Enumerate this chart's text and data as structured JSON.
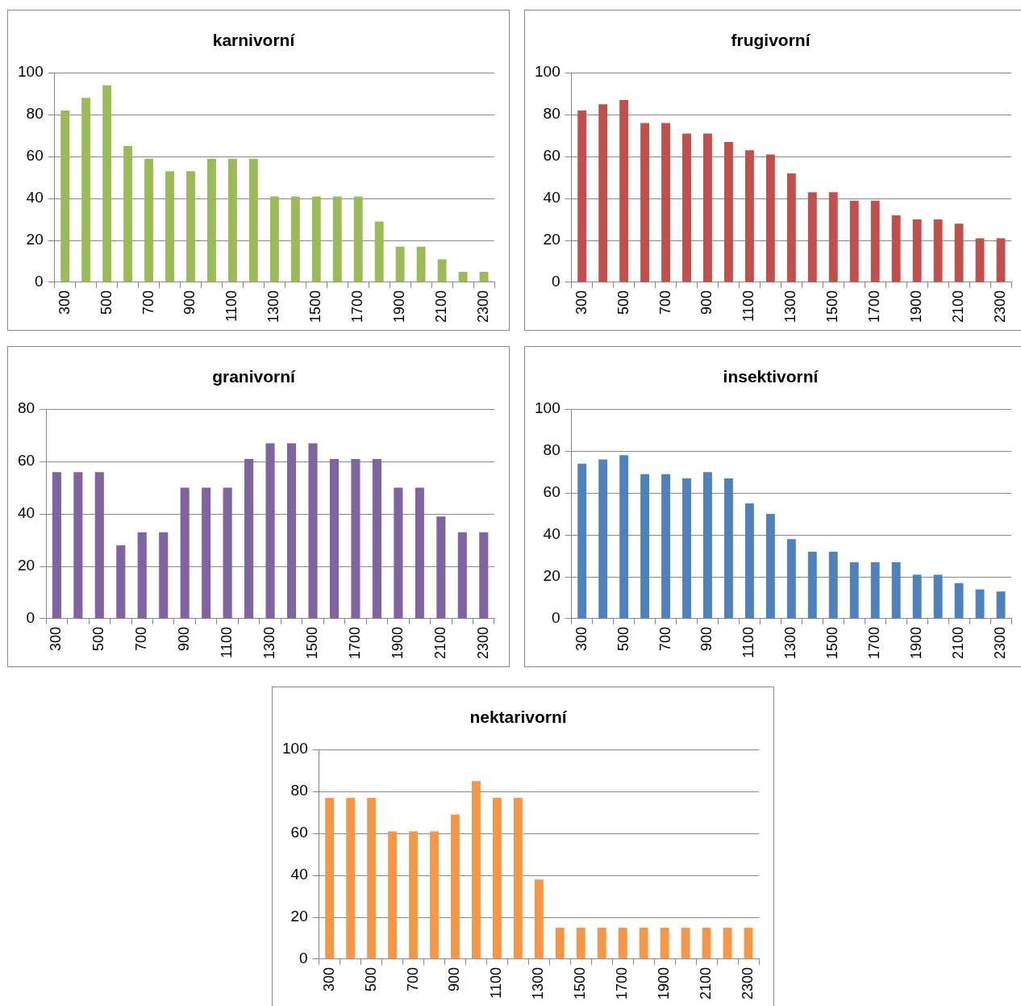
{
  "chart_data": [
    {
      "type": "bar",
      "title": "karnivorní",
      "categories": [
        "300",
        null,
        "500",
        null,
        "700",
        null,
        "900",
        null,
        "1100",
        null,
        "1300",
        null,
        "1500",
        null,
        "1700",
        null,
        "1900",
        null,
        "2100",
        null,
        "2300"
      ],
      "values": [
        82,
        88,
        94,
        65,
        59,
        53,
        53,
        59,
        59,
        59,
        41,
        41,
        41,
        41,
        41,
        29,
        17,
        17,
        11,
        5,
        5
      ],
      "color": "#9bbb59",
      "ylim": [
        0,
        100
      ],
      "yticks": [
        0,
        20,
        40,
        60,
        80,
        100
      ],
      "grid": "y"
    },
    {
      "type": "bar",
      "title": "frugivorní",
      "categories": [
        "300",
        null,
        "500",
        null,
        "700",
        null,
        "900",
        null,
        "1100",
        null,
        "1300",
        null,
        "1500",
        null,
        "1700",
        null,
        "1900",
        null,
        "2100",
        null,
        "2300"
      ],
      "values": [
        82,
        85,
        87,
        76,
        76,
        71,
        71,
        67,
        63,
        61,
        52,
        43,
        43,
        39,
        39,
        32,
        30,
        30,
        28,
        21,
        21
      ],
      "color": "#c0504d",
      "ylim": [
        0,
        100
      ],
      "yticks": [
        0,
        20,
        40,
        60,
        80,
        100
      ],
      "grid": "y"
    },
    {
      "type": "bar",
      "title": "granivorní",
      "categories": [
        "300",
        null,
        "500",
        null,
        "700",
        null,
        "900",
        null,
        "1100",
        null,
        "1300",
        null,
        "1500",
        null,
        "1700",
        null,
        "1900",
        null,
        "2100",
        null,
        "2300"
      ],
      "values": [
        56,
        56,
        56,
        28,
        33,
        33,
        50,
        50,
        50,
        61,
        67,
        67,
        67,
        61,
        61,
        61,
        50,
        50,
        39,
        33,
        33
      ],
      "color": "#8064a2",
      "ylim": [
        0,
        80
      ],
      "yticks": [
        0,
        20,
        40,
        60,
        80
      ],
      "grid": "y"
    },
    {
      "type": "bar",
      "title": "insektivorní",
      "categories": [
        "300",
        null,
        "500",
        null,
        "700",
        null,
        "900",
        null,
        "1100",
        null,
        "1300",
        null,
        "1500",
        null,
        "1700",
        null,
        "1900",
        null,
        "2100",
        null,
        "2300"
      ],
      "values": [
        74,
        76,
        78,
        69,
        69,
        67,
        70,
        67,
        55,
        50,
        38,
        32,
        32,
        27,
        27,
        27,
        21,
        21,
        17,
        14,
        13
      ],
      "color": "#4f81bd",
      "ylim": [
        0,
        100
      ],
      "yticks": [
        0,
        20,
        40,
        60,
        80,
        100
      ],
      "grid": "y"
    },
    {
      "type": "bar",
      "title": "nektarivorní",
      "categories": [
        "300",
        null,
        "500",
        null,
        "700",
        null,
        "900",
        null,
        "1100",
        null,
        "1300",
        null,
        "1500",
        null,
        "1700",
        null,
        "1900",
        null,
        "2100",
        null,
        "2300"
      ],
      "values": [
        77,
        77,
        77,
        61,
        61,
        61,
        69,
        85,
        77,
        77,
        38,
        15,
        15,
        15,
        15,
        15,
        15,
        15,
        15,
        15,
        15
      ],
      "color": "#f79646",
      "ylim": [
        0,
        100
      ],
      "yticks": [
        0,
        20,
        40,
        60,
        80,
        100
      ],
      "grid": "y"
    }
  ]
}
